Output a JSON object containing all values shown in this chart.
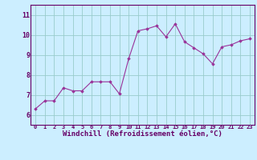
{
  "x": [
    0,
    1,
    2,
    3,
    4,
    5,
    6,
    7,
    8,
    9,
    10,
    11,
    12,
    13,
    14,
    15,
    16,
    17,
    18,
    19,
    20,
    21,
    22,
    23
  ],
  "y": [
    6.3,
    6.7,
    6.7,
    7.35,
    7.2,
    7.2,
    7.65,
    7.65,
    7.65,
    7.05,
    8.8,
    10.2,
    10.3,
    10.45,
    9.9,
    10.55,
    9.65,
    9.35,
    9.05,
    8.55,
    9.4,
    9.5,
    9.7,
    9.8
  ],
  "line_color": "#993399",
  "marker": "D",
  "marker_size": 1.8,
  "bg_color": "#cceeff",
  "grid_color": "#99cccc",
  "xlabel": "Windchill (Refroidissement éolien,°C)",
  "xlabel_color": "#660066",
  "tick_color": "#660066",
  "spine_color": "#660066",
  "ylim": [
    5.5,
    11.5
  ],
  "xlim": [
    -0.5,
    23.5
  ],
  "yticks": [
    6,
    7,
    8,
    9,
    10,
    11
  ],
  "xticks": [
    0,
    1,
    2,
    3,
    4,
    5,
    6,
    7,
    8,
    9,
    10,
    11,
    12,
    13,
    14,
    15,
    16,
    17,
    18,
    19,
    20,
    21,
    22,
    23
  ],
  "title_color": "#660066",
  "title_fontsize": 6,
  "xlabel_fontsize": 6.5,
  "tick_fontsize_x": 5.0,
  "tick_fontsize_y": 6.0
}
